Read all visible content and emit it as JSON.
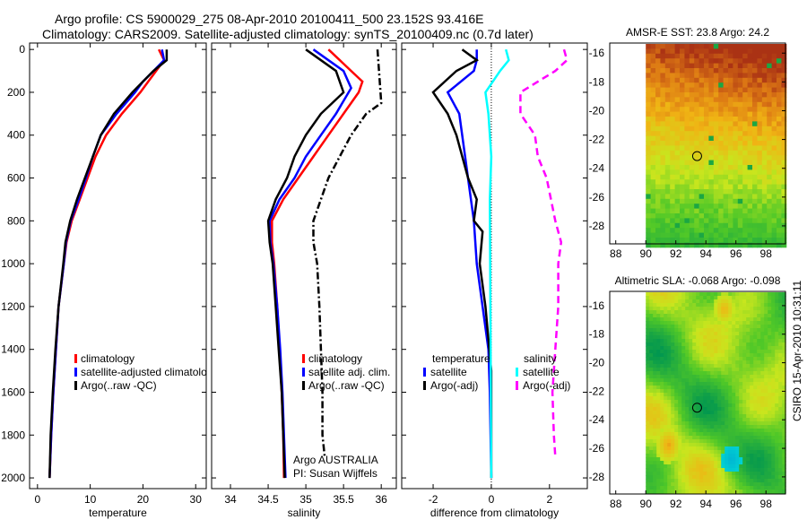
{
  "title_line1": "Argo profile: CS 5900029_275 08-Apr-2010 20100411_500 23.152S 93.416E",
  "title_line2": "Climatology: CARS2009. Satellite-adjusted climatology: synTS_20100409.nc (0.7d later)",
  "side_label": "CSIRO 15-Apr-2010 10:31:11",
  "chart_data": [
    {
      "type": "line",
      "id": "temp",
      "xlabel": "temperature",
      "ylabel": "",
      "xlim": [
        -1.5,
        32
      ],
      "ylim": [
        2050,
        -30
      ],
      "xticks": [
        0,
        10,
        20,
        30
      ],
      "yticks": [
        0,
        200,
        400,
        600,
        800,
        1000,
        1200,
        1400,
        1600,
        1800,
        2000
      ],
      "legend": [
        "climatology",
        "satellite-adjusted climatolo",
        "Argo(..raw -QC)"
      ],
      "series": [
        {
          "name": "climatology",
          "color": "#ff0000",
          "dash": "",
          "depth": [
            0,
            50,
            100,
            150,
            200,
            300,
            400,
            500,
            600,
            700,
            800,
            900,
            1000,
            1200,
            1400,
            1600,
            1800,
            2000
          ],
          "values": [
            23,
            24,
            22.5,
            21,
            19.5,
            16,
            13,
            11,
            9.5,
            8,
            6.5,
            5.5,
            5,
            4,
            3.5,
            3,
            2.6,
            2.3
          ]
        },
        {
          "name": "satellite-adjusted climatology",
          "color": "#0000ff",
          "dash": "",
          "depth": [
            0,
            50,
            100,
            150,
            200,
            300,
            400,
            500,
            600,
            700,
            800,
            900,
            1000,
            1200,
            1400,
            1600,
            1800,
            2000
          ],
          "values": [
            23.6,
            24,
            22,
            20,
            18.5,
            15,
            12,
            10.5,
            9.2,
            7.8,
            6.3,
            5.4,
            5,
            4,
            3.5,
            3,
            2.6,
            2.3
          ]
        },
        {
          "name": "Argo(..raw -QC)",
          "color": "#000000",
          "dash": "",
          "depth": [
            0,
            50,
            100,
            150,
            200,
            300,
            400,
            500,
            600,
            700,
            800,
            900,
            1000,
            1200,
            1400,
            1600,
            1800,
            2000
          ],
          "values": [
            24.5,
            24.5,
            22,
            20,
            18,
            14.5,
            12,
            10.5,
            9,
            7.5,
            6.2,
            5.3,
            4.9,
            4,
            3.4,
            2.9,
            2.5,
            2.3
          ]
        }
      ]
    },
    {
      "type": "line",
      "id": "sal",
      "xlabel": "salinity",
      "xlim": [
        33.75,
        36.2
      ],
      "ylim": [
        2050,
        -30
      ],
      "xticks": [
        34,
        34.5,
        35,
        35.5,
        36
      ],
      "legend": [
        "climatology",
        "satellite adj. clim.",
        "Argo(..raw -QC)"
      ],
      "annotation": [
        "Argo AUSTRALIA",
        "PI: Susan Wijffels"
      ],
      "series": [
        {
          "name": "climatology",
          "color": "#ff0000",
          "dash": "",
          "depth": [
            0,
            100,
            150,
            200,
            300,
            400,
            500,
            600,
            700,
            800,
            900,
            1000,
            1200,
            1400,
            1600,
            1800,
            2000
          ],
          "values": [
            35.3,
            35.6,
            35.75,
            35.7,
            35.5,
            35.3,
            35.1,
            34.9,
            34.7,
            34.55,
            34.55,
            34.58,
            34.62,
            34.65,
            34.68,
            34.7,
            34.71
          ]
        },
        {
          "name": "satellite adj. clim.",
          "color": "#0000ff",
          "dash": "",
          "depth": [
            0,
            100,
            180,
            300,
            400,
            500,
            600,
            700,
            800,
            900,
            1000,
            1200,
            1400,
            1600,
            1800,
            2000
          ],
          "values": [
            35.1,
            35.5,
            35.6,
            35.4,
            35.2,
            35.0,
            34.85,
            34.65,
            34.52,
            34.53,
            34.57,
            34.62,
            34.66,
            34.69,
            34.71,
            34.73
          ]
        },
        {
          "name": "Argo(..raw -QC)",
          "color": "#000000",
          "dash": "",
          "depth": [
            0,
            100,
            200,
            300,
            400,
            500,
            600,
            700,
            800,
            900,
            1000,
            1200,
            1400,
            1600,
            1800,
            2000
          ],
          "values": [
            35.0,
            35.4,
            35.5,
            35.2,
            35.0,
            34.85,
            34.75,
            34.6,
            34.5,
            34.52,
            34.56,
            34.6,
            34.64,
            34.68,
            34.7,
            34.72
          ]
        },
        {
          "name": "Argo raw",
          "color": "#000000",
          "dash": "8,3,2,3",
          "depth": [
            0,
            250,
            300,
            400,
            500,
            600,
            700,
            800,
            900,
            1000,
            1200,
            1400,
            1600,
            1800,
            1900
          ],
          "values": [
            35.95,
            36.0,
            35.8,
            35.6,
            35.45,
            35.3,
            35.2,
            35.1,
            35.1,
            35.15,
            35.18,
            35.2,
            35.22,
            35.22,
            35.25
          ]
        }
      ]
    },
    {
      "type": "line",
      "id": "diff",
      "xlabel": "difference from climatology",
      "xlim": [
        -3.08,
        3.3
      ],
      "ylim": [
        2050,
        -30
      ],
      "xticks": [
        -2,
        0,
        2
      ],
      "legend_headers": [
        "temperature",
        "salinity"
      ],
      "legend": [
        "satellite",
        "Argo(-adj)",
        "satellite",
        "Argo(-adj)"
      ],
      "series": [
        {
          "name": "temperature satellite",
          "color": "#0000ff",
          "dash": "",
          "depth": [
            0,
            50,
            100,
            200,
            300,
            500,
            700,
            800,
            1000,
            1200,
            1400,
            1600,
            2000
          ],
          "values": [
            -0.5,
            -0.5,
            -0.6,
            -1.5,
            -1.1,
            -0.9,
            -0.7,
            -0.6,
            -0.5,
            -0.3,
            -0.1,
            -0.05,
            0
          ]
        },
        {
          "name": "temperature Argo(-adj)",
          "color": "#000000",
          "dash": "",
          "depth": [
            0,
            50,
            100,
            200,
            300,
            400,
            500,
            600,
            700,
            800,
            850,
            1000,
            1200,
            1500,
            2000
          ],
          "values": [
            -1,
            -0.5,
            -1.2,
            -2,
            -1.5,
            -1.2,
            -1,
            -0.8,
            -0.5,
            -0.6,
            -0.3,
            -0.4,
            -0.2,
            0,
            0
          ]
        },
        {
          "name": "salinity satellite",
          "color": "#00ffff",
          "dash": "",
          "depth": [
            0,
            50,
            100,
            200,
            300,
            500,
            700,
            2000
          ],
          "values": [
            0.5,
            0.6,
            0.3,
            -0.2,
            -0.1,
            0,
            -0.05,
            0
          ]
        },
        {
          "name": "salinity Argo(-adj)",
          "color": "#ff00ff",
          "dash": "8,5",
          "depth": [
            0,
            50,
            100,
            200,
            300,
            400,
            500,
            600,
            800,
            900,
            1000,
            1200,
            1400,
            1600,
            1800,
            1900
          ],
          "values": [
            2.5,
            2.6,
            2.2,
            1.0,
            1.0,
            1.5,
            1.6,
            1.9,
            2.2,
            2.4,
            2.3,
            2.3,
            2.2,
            2.1,
            2.15,
            2.2
          ]
        }
      ]
    },
    {
      "type": "heatmap",
      "id": "sst",
      "title": "AMSR-E SST: 23.8  Argo: 24.2",
      "xlim": [
        87.6,
        99.3
      ],
      "ylim": [
        -29.25,
        -15.3
      ],
      "xticks": [
        88,
        90,
        92,
        94,
        96,
        98
      ],
      "yticks": [
        -16,
        -18,
        -20,
        -22,
        -24,
        -26,
        -28
      ],
      "marker": {
        "lon": 93.416,
        "lat": -23.152
      }
    },
    {
      "type": "heatmap",
      "id": "sla",
      "title": "Altimetric SLA: -0.068  Argo: -0.098",
      "xlim": [
        87.6,
        99.3
      ],
      "ylim": [
        -29.2,
        -15.0
      ],
      "xticks": [
        88,
        90,
        92,
        94,
        96,
        98
      ],
      "yticks": [
        -16,
        -18,
        -20,
        -22,
        -24,
        -26,
        -28
      ],
      "marker": {
        "lon": 93.416,
        "lat": -23.152
      }
    }
  ]
}
